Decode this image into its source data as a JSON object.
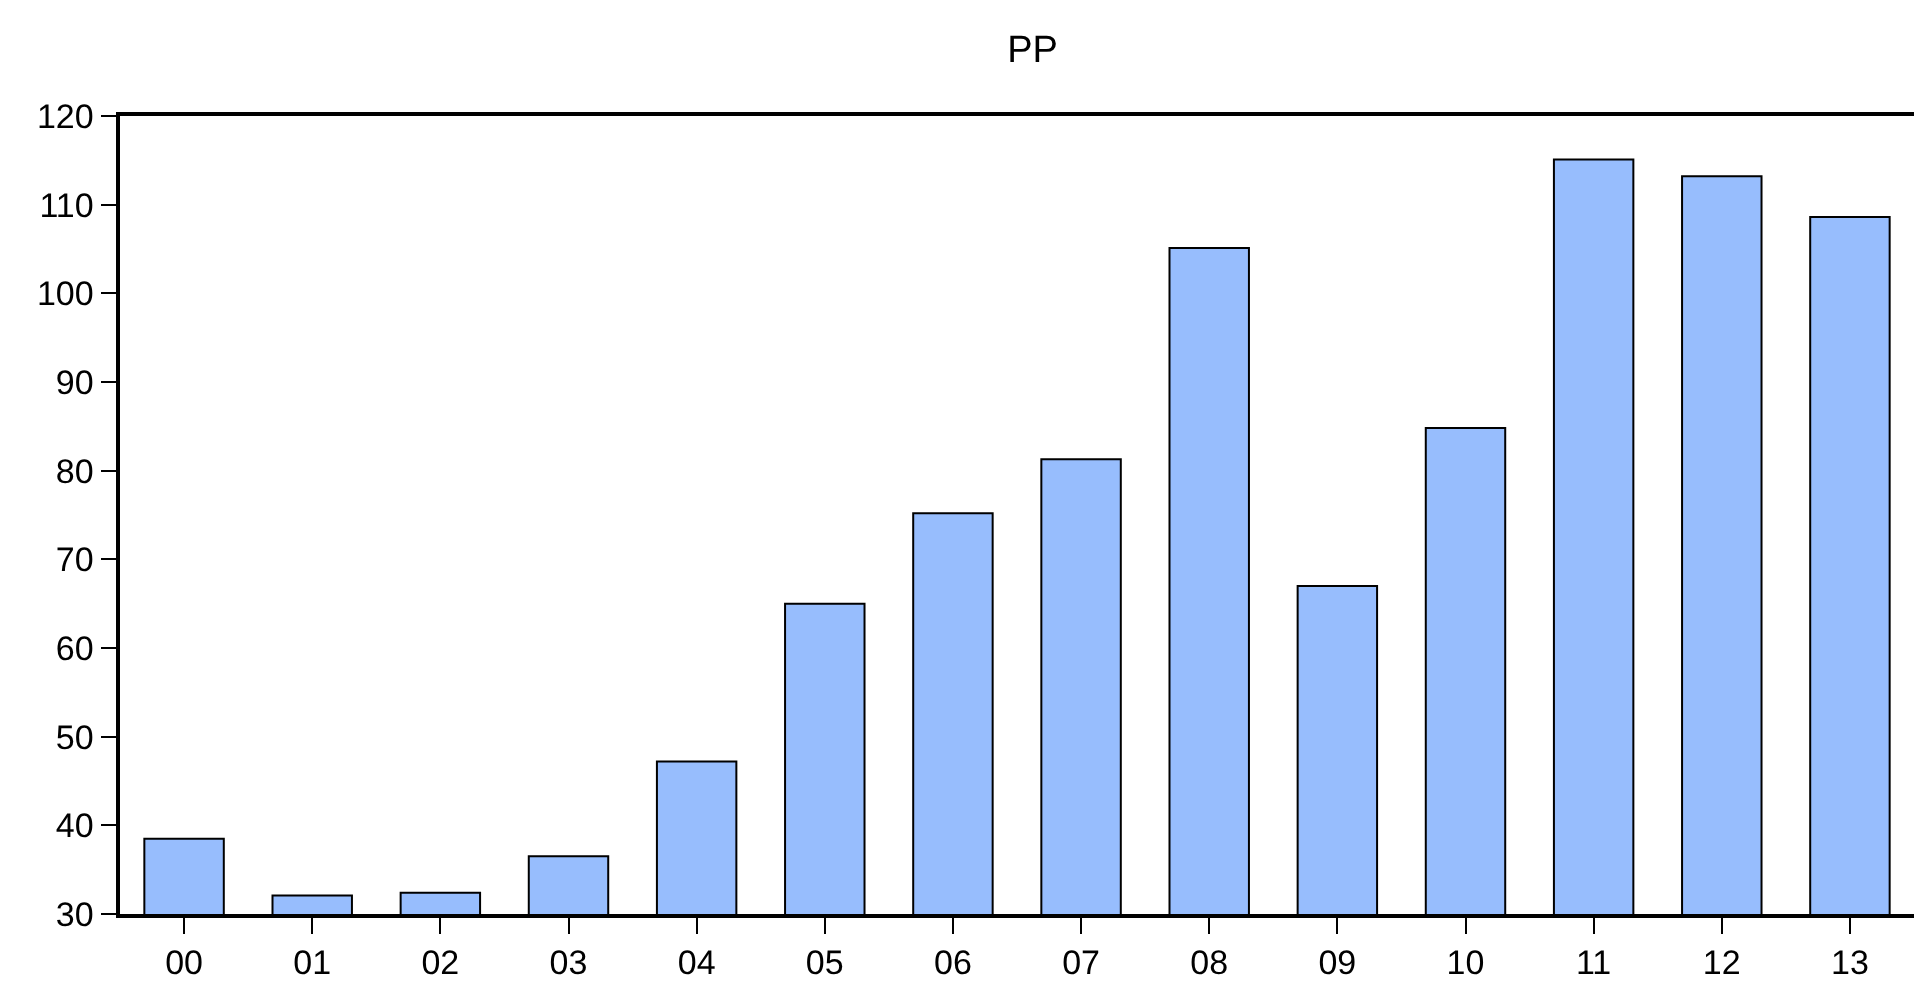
{
  "chart_data": {
    "type": "bar",
    "title": "PP",
    "categories": [
      "00",
      "01",
      "02",
      "03",
      "04",
      "05",
      "06",
      "07",
      "08",
      "09",
      "10",
      "11",
      "12",
      "13"
    ],
    "values": [
      38.5,
      32.1,
      32.4,
      36.5,
      47.2,
      65.0,
      75.2,
      81.3,
      105.1,
      67.0,
      84.8,
      115.1,
      113.2,
      108.6
    ],
    "color": "#97bdfd",
    "ylim": [
      30,
      120
    ],
    "yticks": [
      30,
      40,
      50,
      60,
      70,
      80,
      90,
      100,
      110,
      120
    ]
  }
}
